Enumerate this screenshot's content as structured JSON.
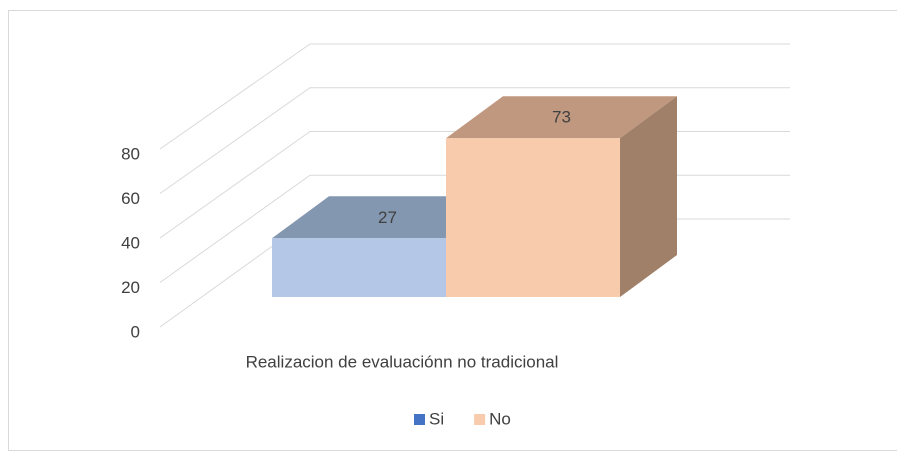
{
  "chart_data": {
    "type": "bar3d",
    "categories": [
      "Realizacion de evaluaciónn no tradicional"
    ],
    "series": [
      {
        "name": "Si",
        "color": "#4472c4",
        "face_color": "#b4c7e7",
        "top_color": "#8497b0",
        "side_color": "#6f7f96",
        "values": [
          27
        ]
      },
      {
        "name": "No",
        "color": "#f8cbad",
        "face_color": "#f8cbad",
        "top_color": "#c0977f",
        "side_color": "#a08069",
        "values": [
          73
        ]
      }
    ],
    "ylim": [
      0,
      80
    ],
    "yticks": [
      0,
      20,
      40,
      60,
      80
    ],
    "grid": true,
    "legend": "bottom"
  }
}
